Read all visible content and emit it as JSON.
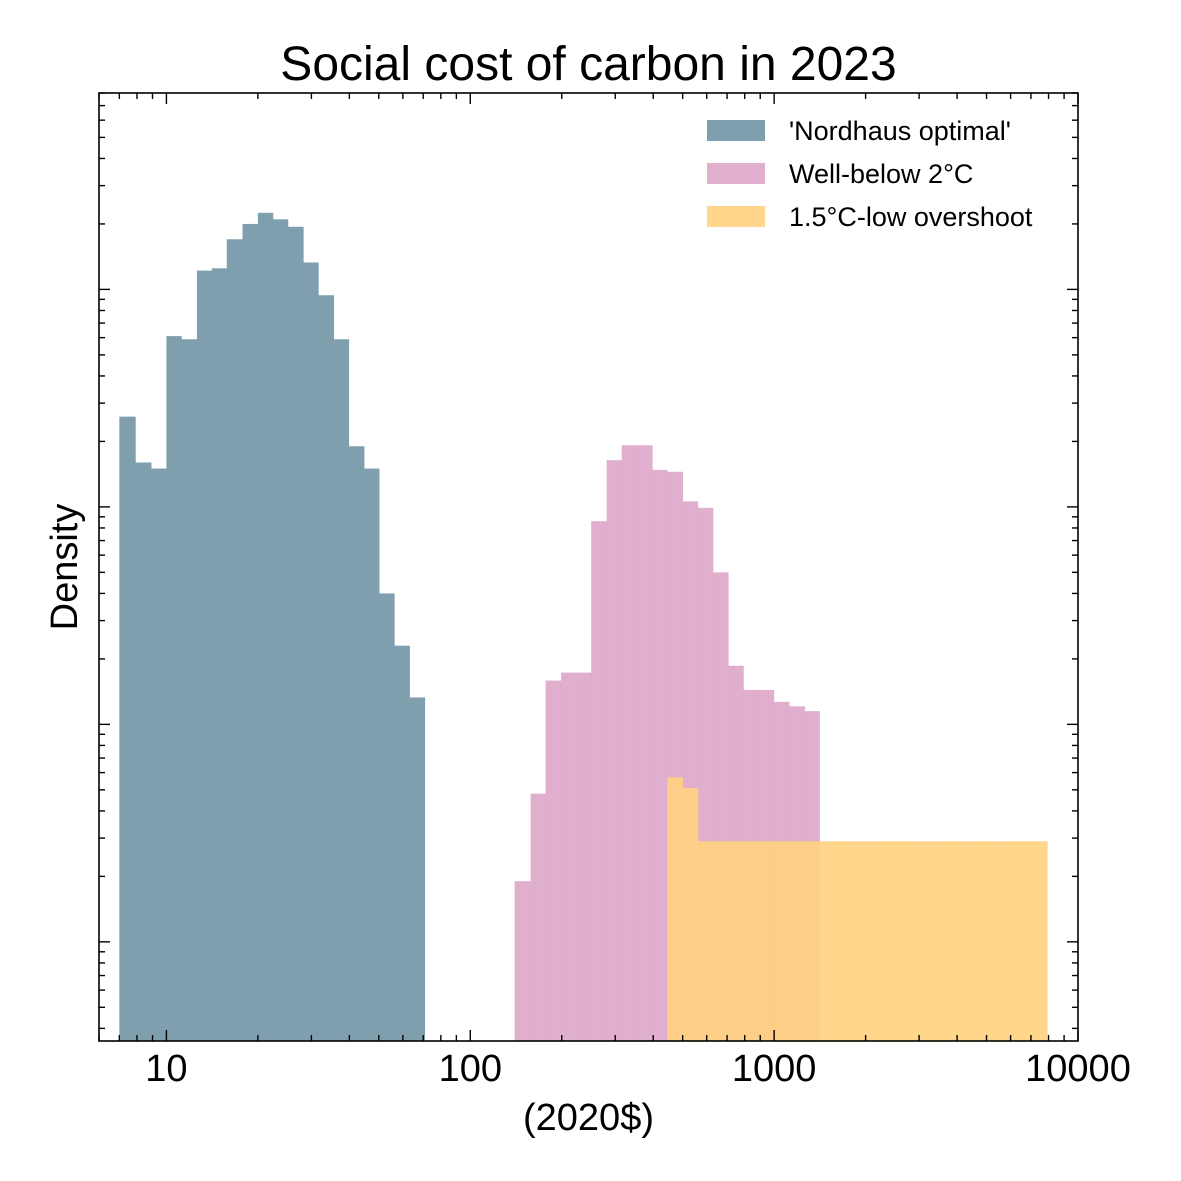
{
  "chart_data": {
    "type": "histogram",
    "title": "Social cost of carbon in 2023",
    "xlabel": "(2020$)",
    "ylabel": "Density",
    "xscale": "log",
    "yscale": "log",
    "xlim": [
      6,
      10000
    ],
    "ylim": [
      3.5e-06,
      0.08
    ],
    "x_ticks": [
      10,
      100,
      1000,
      10000
    ],
    "x_tick_labels": [
      "10",
      "100",
      "1000",
      "10000"
    ],
    "y_tick_labels_shown": false,
    "legend_position": "upper-right",
    "grid": false,
    "series": [
      {
        "name": "'Nordhaus optimal'",
        "color": "#7f9fae",
        "bin_edges": [
          7.0,
          7.9,
          8.9,
          10.0,
          11.2,
          12.6,
          14.1,
          15.8,
          17.8,
          20.0,
          22.4,
          25.1,
          28.2,
          31.6,
          35.5,
          39.8,
          44.7,
          50.1,
          56.2,
          63.1,
          70.8
        ],
        "densities": [
          0.0026,
          0.0016,
          0.0015,
          0.0061,
          0.0059,
          0.0122,
          0.0125,
          0.017,
          0.02,
          0.0225,
          0.021,
          0.0194,
          0.0133,
          0.0094,
          0.0059,
          0.0019,
          0.0015,
          0.0004,
          0.00023,
          0.000133
        ]
      },
      {
        "name": "Well-below 2°C",
        "color": "#dda6c8",
        "bin_edges": [
          140,
          158,
          177,
          199,
          223,
          250,
          281,
          315,
          354,
          397,
          445,
          500,
          561,
          629,
          706,
          792,
          888,
          997,
          1120,
          1260,
          1410
        ],
        "densities": [
          1.9e-05,
          4.8e-05,
          0.000159,
          0.000173,
          0.000173,
          0.00086,
          0.00164,
          0.00192,
          0.00192,
          0.00148,
          0.00145,
          0.00106,
          0.00099,
          0.0005,
          0.000186,
          0.000144,
          0.000144,
          0.000127,
          0.000121,
          0.000115
        ]
      },
      {
        "name": "1.5°C-low overshoot",
        "color": "#ffd280",
        "bin_edges": [
          445,
          500,
          561,
          629,
          706,
          792,
          888,
          997,
          1120,
          1260,
          1410,
          1580,
          1770,
          1990,
          2230,
          2500,
          2810,
          3150,
          3540,
          3970,
          4450,
          5000,
          5610,
          6290,
          7060,
          7920
        ],
        "densities": [
          5.7e-05,
          5.1e-05,
          2.9e-05,
          2.9e-05,
          2.9e-05,
          2.9e-05,
          2.9e-05,
          2.9e-05,
          2.9e-05,
          2.9e-05,
          2.9e-05,
          2.9e-05,
          2.9e-05,
          2.9e-05,
          2.9e-05,
          2.9e-05,
          2.9e-05,
          2.9e-05,
          2.9e-05,
          2.9e-05,
          2.9e-05,
          2.9e-05,
          2.9e-05,
          2.9e-05,
          2.9e-05
        ]
      }
    ]
  }
}
